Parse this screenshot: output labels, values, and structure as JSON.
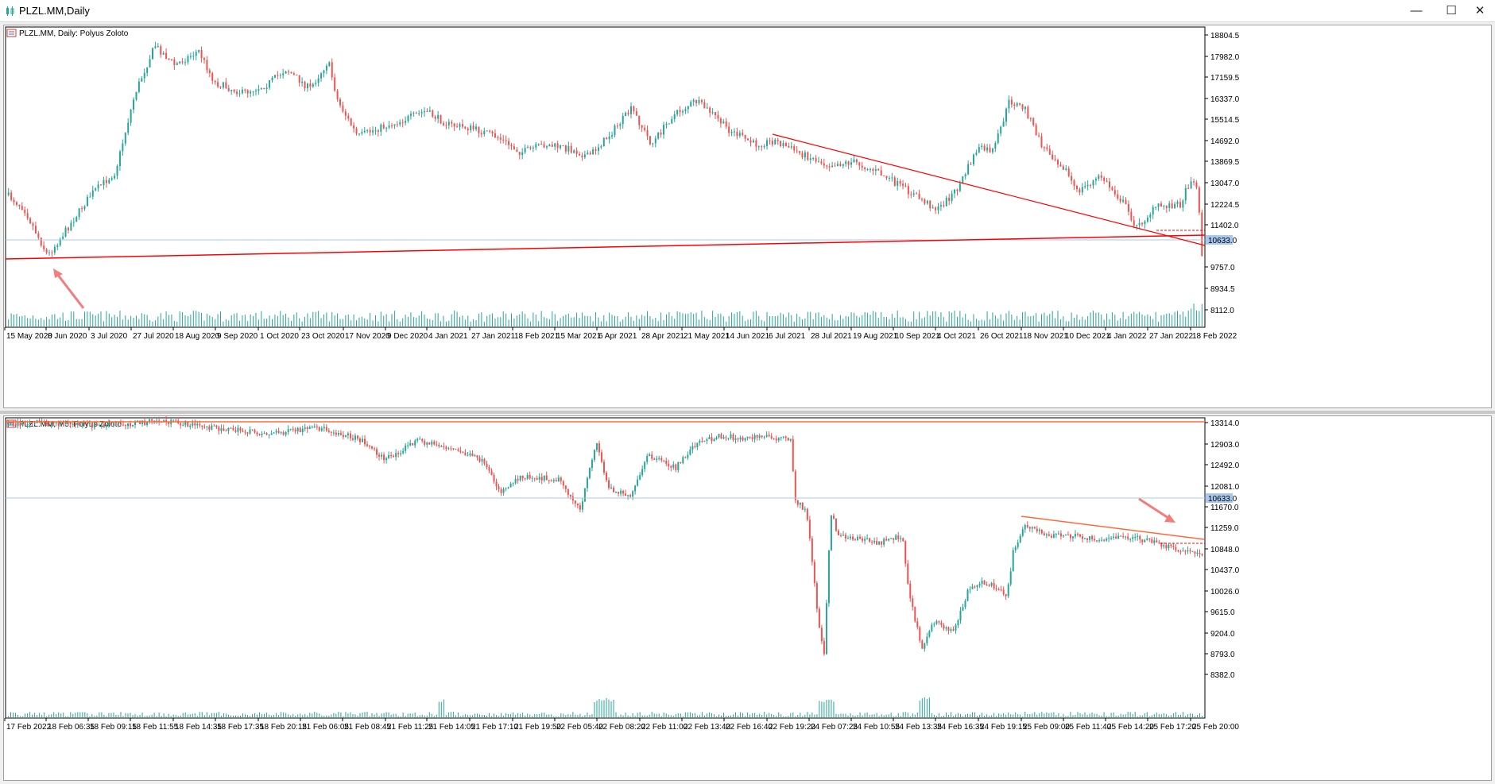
{
  "window": {
    "title": "PLZL.MM,Daily",
    "controls": {
      "minimize": "—",
      "maximize": "☐",
      "close": "✕"
    }
  },
  "colors": {
    "bull": "#26a69a",
    "bear": "#ef5350",
    "trendline": "#ff0000",
    "price_line": "#a8c8e8",
    "price_tag_bg": "#a8c8f0",
    "arrow": "#f47c7c",
    "level_line": "#ff6a3d"
  },
  "charts": [
    {
      "id": "daily",
      "header": "PLZL.MM, Daily:  Polyus Zoloto",
      "price_axis": [
        "18804.5",
        "17982.0",
        "17159.5",
        "16337.0",
        "15514.5",
        "14692.0",
        "13869.5",
        "13047.0",
        "12224.5",
        "11402.0",
        "9757.0",
        "8934.5",
        "8112.0"
      ],
      "current_price": "10633.0",
      "time_axis": [
        "15 May 2020",
        "8 Jun 2020",
        "3 Jul 2020",
        "27 Jul 2020",
        "18 Aug 2020",
        "9 Sep 2020",
        "1 Oct 2020",
        "23 Oct 2020",
        "17 Nov 2020",
        "9 Dec 2020",
        "4 Jan 2021",
        "27 Jan 2021",
        "18 Feb 2021",
        "15 Mar 2021",
        "6 Apr 2021",
        "28 Apr 2021",
        "21 May 2021",
        "14 Jun 2021",
        "6 Jul 2021",
        "28 Jul 2021",
        "19 Aug 2021",
        "10 Sep 2021",
        "4 Oct 2021",
        "26 Oct 2021",
        "18 Nov 2021",
        "10 Dec 2021",
        "4 Jan 2022",
        "27 Jan 2022",
        "18 Feb 2022"
      ]
    },
    {
      "id": "m5",
      "header": "PLZL.MM, M5:  Polyus Zoloto",
      "price_axis": [
        "13314.0",
        "12903.0",
        "12492.0",
        "12081.0",
        "11670.0",
        "11259.0",
        "10848.0",
        "10437.0",
        "10026.0",
        "9615.0",
        "9204.0",
        "8793.0",
        "8382.0"
      ],
      "current_price": "10633.0",
      "time_axis": [
        "17 Feb 2022",
        "18 Feb 06:35",
        "18 Feb 09:15",
        "18 Feb 11:55",
        "18 Feb 14:35",
        "18 Feb 17:35",
        "18 Feb 20:15",
        "21 Feb 06:05",
        "21 Feb 08:45",
        "21 Feb 11:25",
        "21 Feb 14:05",
        "21 Feb 17:10",
        "21 Feb 19:50",
        "22 Feb 05:40",
        "22 Feb 08:20",
        "22 Feb 11:00",
        "22 Feb 13:40",
        "22 Feb 16:40",
        "22 Feb 19:20",
        "24 Feb 07:25",
        "24 Feb 10:55",
        "24 Feb 13:35",
        "24 Feb 16:35",
        "24 Feb 19:15",
        "25 Feb 09:00",
        "25 Feb 11:40",
        "25 Feb 14:20",
        "25 Feb 17:20",
        "25 Feb 20:00"
      ]
    }
  ]
}
